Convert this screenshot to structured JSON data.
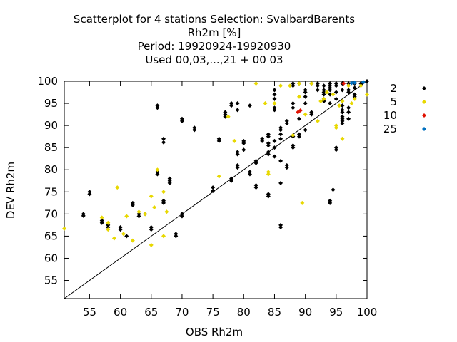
{
  "chart_data": {
    "type": "scatter",
    "title_lines": [
      "Scatterplot for    4 stations Selection: SvalbardBarents",
      "Rh2m [%]",
      "Period: 19920924-19920930",
      "Used  00,03,...,21  + 00 03"
    ],
    "xlabel": "OBS Rh2m",
    "ylabel": "DEV Rh2m",
    "xlim": [
      50.9,
      100
    ],
    "ylim": [
      50.9,
      100
    ],
    "xticks": [
      55,
      60,
      65,
      70,
      75,
      80,
      85,
      90,
      95,
      100
    ],
    "yticks": [
      55,
      60,
      65,
      70,
      75,
      80,
      85,
      90,
      95,
      100
    ],
    "diagonal": true,
    "legend_position": "right",
    "series": [
      {
        "name": "2",
        "color": "#000000",
        "points": [
          [
            54,
            70
          ],
          [
            54,
            69.6
          ],
          [
            55,
            75
          ],
          [
            55,
            74.5
          ],
          [
            57,
            68.5
          ],
          [
            57,
            68
          ],
          [
            58,
            67.5
          ],
          [
            58,
            67
          ],
          [
            60,
            67
          ],
          [
            60,
            66.5
          ],
          [
            61,
            65
          ],
          [
            62,
            72.5
          ],
          [
            62,
            72
          ],
          [
            63,
            70
          ],
          [
            63,
            69.5
          ],
          [
            64,
            70
          ],
          [
            65,
            67
          ],
          [
            65,
            66.5
          ],
          [
            66,
            79
          ],
          [
            66,
            79.5
          ],
          [
            66,
            94
          ],
          [
            66,
            94.5
          ],
          [
            67,
            87
          ],
          [
            67,
            86.2
          ],
          [
            67,
            73
          ],
          [
            67,
            72.5
          ],
          [
            68,
            78
          ],
          [
            68,
            77.5
          ],
          [
            68,
            77
          ],
          [
            69,
            65.5
          ],
          [
            69,
            65
          ],
          [
            70,
            91.5
          ],
          [
            70,
            91
          ],
          [
            70,
            70
          ],
          [
            70,
            69.5
          ],
          [
            72,
            89
          ],
          [
            72,
            89.5
          ],
          [
            75,
            76
          ],
          [
            75,
            75.2
          ],
          [
            76,
            87
          ],
          [
            76,
            86.5
          ],
          [
            77,
            93
          ],
          [
            77,
            92.5
          ],
          [
            77,
            92
          ],
          [
            78,
            95
          ],
          [
            78,
            94.5
          ],
          [
            79,
            84
          ],
          [
            79,
            83.5
          ],
          [
            79,
            81
          ],
          [
            79,
            80.5
          ],
          [
            78,
            78
          ],
          [
            78,
            77.5
          ],
          [
            79,
            95
          ],
          [
            79,
            93.5
          ],
          [
            80,
            86.5
          ],
          [
            80,
            86
          ],
          [
            80,
            84.5
          ],
          [
            81,
            94.5
          ],
          [
            81,
            79.5
          ],
          [
            81,
            79
          ],
          [
            82,
            82
          ],
          [
            82,
            81.5
          ],
          [
            82,
            76.5
          ],
          [
            82,
            76
          ],
          [
            83,
            87
          ],
          [
            83,
            86.5
          ],
          [
            84,
            88
          ],
          [
            84,
            87.5
          ],
          [
            84,
            86
          ],
          [
            84,
            85.5
          ],
          [
            84,
            84
          ],
          [
            84,
            83.5
          ],
          [
            84,
            74.5
          ],
          [
            84,
            74
          ],
          [
            85,
            94
          ],
          [
            85,
            93.5
          ],
          [
            85,
            96
          ],
          [
            85,
            97
          ],
          [
            85,
            98
          ],
          [
            85,
            86.5
          ],
          [
            85,
            85
          ],
          [
            85,
            83
          ],
          [
            86,
            89.5
          ],
          [
            86,
            89
          ],
          [
            86,
            88
          ],
          [
            86,
            87
          ],
          [
            86,
            82
          ],
          [
            86,
            77
          ],
          [
            86,
            67.5
          ],
          [
            86,
            67
          ],
          [
            87,
            81
          ],
          [
            87,
            80.5
          ],
          [
            87,
            91
          ],
          [
            87,
            90.5
          ],
          [
            88,
            95
          ],
          [
            88,
            94
          ],
          [
            88,
            99.5
          ],
          [
            88,
            99
          ],
          [
            88,
            87.5
          ],
          [
            88,
            85.5
          ],
          [
            88,
            85
          ],
          [
            89,
            99.5
          ],
          [
            89,
            91.5
          ],
          [
            89,
            88
          ],
          [
            89,
            87.5
          ],
          [
            90,
            98
          ],
          [
            90,
            97.5
          ],
          [
            90,
            96.5
          ],
          [
            90,
            95
          ],
          [
            90,
            89
          ],
          [
            91,
            93
          ],
          [
            91,
            92.5
          ],
          [
            91,
            99.5
          ],
          [
            92,
            99.5
          ],
          [
            92,
            99
          ],
          [
            92,
            98
          ],
          [
            93,
            99
          ],
          [
            93,
            98
          ],
          [
            93,
            97.5
          ],
          [
            93,
            97
          ],
          [
            93,
            96
          ],
          [
            93,
            95.5
          ],
          [
            94,
            99.5
          ],
          [
            94,
            99
          ],
          [
            94,
            98.5
          ],
          [
            94,
            98
          ],
          [
            94,
            97
          ],
          [
            94,
            95
          ],
          [
            94,
            73
          ],
          [
            94,
            72.5
          ],
          [
            95,
            99.5
          ],
          [
            95,
            99
          ],
          [
            95,
            97.5
          ],
          [
            95,
            96
          ],
          [
            95,
            85
          ],
          [
            95,
            84.5
          ],
          [
            96,
            99.5
          ],
          [
            96,
            98
          ],
          [
            96,
            94.5
          ],
          [
            96,
            93.5
          ],
          [
            96,
            93
          ],
          [
            96,
            92
          ],
          [
            96,
            91.5
          ],
          [
            96,
            91
          ],
          [
            96,
            90.5
          ],
          [
            97,
            99.5
          ],
          [
            97,
            98
          ],
          [
            97,
            97.5
          ],
          [
            97,
            94
          ],
          [
            97,
            93
          ],
          [
            97,
            91.5
          ],
          [
            98,
            99.5
          ],
          [
            98,
            98.5
          ],
          [
            98,
            97
          ],
          [
            98,
            96.5
          ],
          [
            99,
            99.5
          ],
          [
            100,
            100
          ],
          [
            94.5,
            75.5
          ]
        ]
      },
      {
        "name": "5",
        "color": "#e8d800",
        "points": [
          [
            50.9,
            66.7
          ],
          [
            57,
            69.2
          ],
          [
            58,
            66.5
          ],
          [
            58,
            68
          ],
          [
            59,
            64.5
          ],
          [
            59.5,
            76
          ],
          [
            60.5,
            65.5
          ],
          [
            61,
            69.5
          ],
          [
            62,
            64
          ],
          [
            63,
            70.5
          ],
          [
            64,
            70
          ],
          [
            65,
            74
          ],
          [
            65,
            63
          ],
          [
            65.5,
            71.5
          ],
          [
            66,
            80
          ],
          [
            67,
            75
          ],
          [
            67,
            65
          ],
          [
            67.5,
            70.5
          ],
          [
            76,
            78.5
          ],
          [
            77.5,
            92
          ],
          [
            78.5,
            86.5
          ],
          [
            82,
            99.5
          ],
          [
            83.5,
            95
          ],
          [
            84,
            79.5
          ],
          [
            84,
            79
          ],
          [
            85,
            95
          ],
          [
            86,
            99
          ],
          [
            87.5,
            99
          ],
          [
            88,
            87.8
          ],
          [
            89,
            96.5
          ],
          [
            89,
            99.5
          ],
          [
            89.5,
            72.5
          ],
          [
            90,
            92.5
          ],
          [
            91,
            99.5
          ],
          [
            92,
            91
          ],
          [
            92.5,
            95.5
          ],
          [
            93,
            96
          ],
          [
            93.5,
            97.5
          ],
          [
            94.5,
            97
          ],
          [
            95,
            89.5
          ],
          [
            95,
            90
          ],
          [
            95.5,
            94.5
          ],
          [
            96,
            87
          ],
          [
            96,
            95.5
          ],
          [
            97,
            99
          ],
          [
            97.5,
            95
          ],
          [
            98,
            96
          ],
          [
            99,
            99
          ],
          [
            100,
            97
          ]
        ]
      },
      {
        "name": "10",
        "color": "#e01000",
        "points": [
          [
            88.8,
            93
          ],
          [
            89.2,
            93.4
          ],
          [
            96.2,
            99.5
          ]
        ]
      },
      {
        "name": "25",
        "color": "#0070c0",
        "points": [
          [
            97.5,
            99.6
          ],
          [
            98,
            99.7
          ],
          [
            99.4,
            99.8
          ]
        ]
      }
    ]
  }
}
